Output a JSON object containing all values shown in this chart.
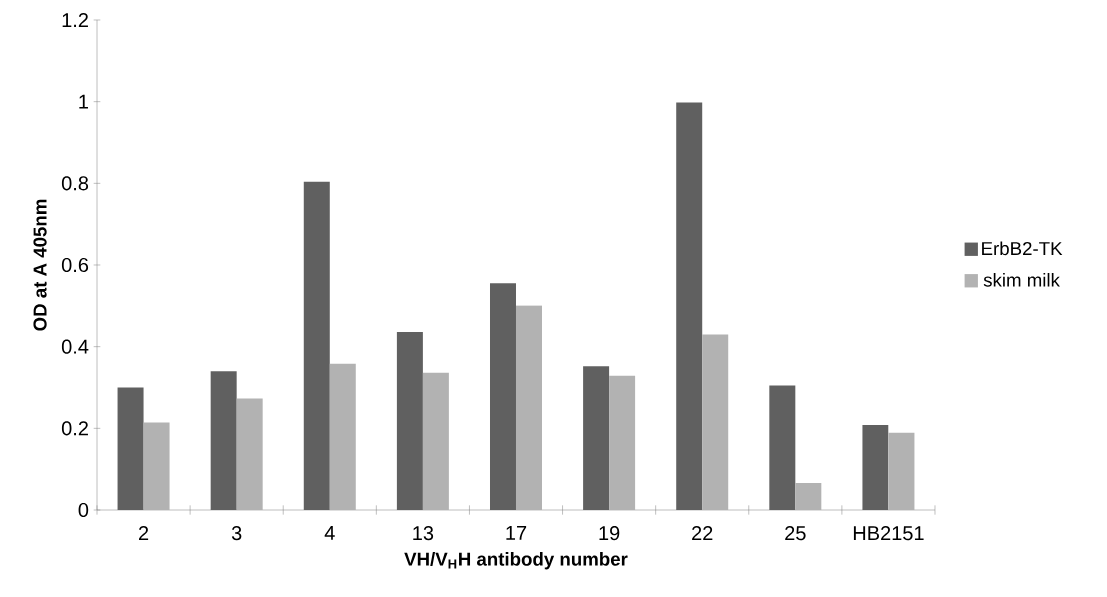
{
  "chart_data": {
    "type": "bar",
    "xlabel": "VH/V$_{H}$H antibody number",
    "ylabel": "OD at A 405nm",
    "categories": [
      "2",
      "3",
      "4",
      "13",
      "17",
      "19",
      "22",
      "25",
      "HB2151"
    ],
    "series": [
      {
        "name": "ErbB2-TK",
        "color": "#606060",
        "values": [
          0.3,
          0.34,
          0.804,
          0.436,
          0.555,
          0.352,
          0.998,
          0.305,
          0.208
        ]
      },
      {
        "name": "skim milk",
        "color": "#b2b2b2",
        "values": [
          0.214,
          0.273,
          0.358,
          0.336,
          0.501,
          0.329,
          0.43,
          0.066,
          0.189
        ]
      }
    ],
    "ylim": [
      0,
      1.2
    ],
    "yticks": [
      0,
      0.2,
      0.4,
      0.6,
      0.8,
      1,
      1.2
    ],
    "grid": false,
    "legend": "right"
  }
}
